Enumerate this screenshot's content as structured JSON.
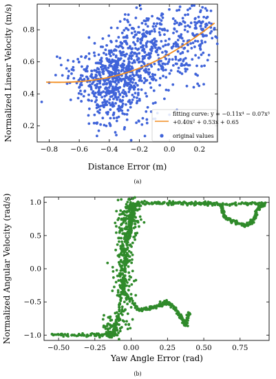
{
  "chart_data": [
    {
      "type": "scatter",
      "panel_label": "(a)",
      "title": "",
      "xlabel": "Distance Error (m)",
      "ylabel": "Normalized Linear Velocity (m/s)",
      "xlim": [
        -0.88,
        0.32
      ],
      "ylim": [
        0.1,
        0.96
      ],
      "xticks": [
        -0.8,
        -0.6,
        -0.4,
        -0.2,
        0.0,
        0.2
      ],
      "xtick_labels": [
        "−0.8",
        "−0.6",
        "−0.4",
        "−0.2",
        "0.0",
        "0.2"
      ],
      "yticks": [
        0.2,
        0.4,
        0.6,
        0.8
      ],
      "ytick_labels": [
        "0.2",
        "0.4",
        "0.6",
        "0.8"
      ],
      "grid": false,
      "legend_position": "bottom-right",
      "series": [
        {
          "name": "fitting curve",
          "kind": "line",
          "color": "#f28c1e",
          "legend_label_lines": [
            "fitting curve: y = −0.11x⁴ − 0.07x³",
            "+0.40x² + 0.53x + 0.65"
          ],
          "coefficients": [
            -0.11,
            -0.07,
            0.4,
            0.53,
            0.65
          ],
          "x_range": [
            -0.82,
            0.3
          ]
        },
        {
          "name": "original values",
          "kind": "scatter",
          "color": "#3f63d9",
          "legend_label_lines": [
            "original values"
          ],
          "clusters": [
            {
              "cx": -0.38,
              "cy": 0.52,
              "sx": 0.1,
              "sy": 0.09,
              "n": 320
            },
            {
              "cx": -0.25,
              "cy": 0.62,
              "sx": 0.1,
              "sy": 0.13,
              "n": 180
            },
            {
              "cx": -0.1,
              "cy": 0.66,
              "sx": 0.11,
              "sy": 0.13,
              "n": 170
            },
            {
              "cx": 0.08,
              "cy": 0.7,
              "sx": 0.1,
              "sy": 0.13,
              "n": 120
            },
            {
              "cx": -0.45,
              "cy": 0.36,
              "sx": 0.07,
              "sy": 0.1,
              "n": 80
            },
            {
              "cx": -0.3,
              "cy": 0.32,
              "sx": 0.09,
              "sy": 0.08,
              "n": 70
            },
            {
              "cx": 0.2,
              "cy": 0.82,
              "sx": 0.05,
              "sy": 0.06,
              "n": 50
            },
            {
              "cx": -0.62,
              "cy": 0.52,
              "sx": 0.08,
              "sy": 0.05,
              "n": 35
            }
          ],
          "points": [
            [
              -0.85,
              0.35
            ],
            [
              -0.8,
              0.47
            ],
            [
              -0.72,
              0.58
            ],
            [
              -0.6,
              0.44
            ],
            [
              -0.55,
              0.56
            ],
            [
              -0.48,
              0.22
            ],
            [
              -0.47,
              0.17
            ],
            [
              -0.42,
              0.2
            ],
            [
              -0.36,
              0.16
            ],
            [
              -0.3,
              0.18
            ],
            [
              -0.22,
              0.22
            ],
            [
              -0.15,
              0.24
            ],
            [
              0.15,
              0.95
            ],
            [
              0.22,
              0.94
            ],
            [
              0.3,
              0.81
            ],
            [
              0.28,
              0.79
            ],
            [
              0.25,
              0.83
            ],
            [
              -0.05,
              0.9
            ],
            [
              0.05,
              0.92
            ],
            [
              -0.15,
              0.87
            ],
            [
              -0.28,
              0.86
            ],
            [
              0.0,
              0.27
            ],
            [
              0.05,
              0.3
            ],
            [
              -0.08,
              0.28
            ]
          ]
        }
      ]
    },
    {
      "type": "scatter",
      "panel_label": "(b)",
      "title": "",
      "xlabel": "Yaw Angle Error (rad)",
      "ylabel": "Normalized Angular Velocity (rad/s)",
      "xlim": [
        -0.6,
        0.95
      ],
      "ylim": [
        -1.08,
        1.08
      ],
      "xticks": [
        -0.5,
        -0.25,
        0.0,
        0.25,
        0.5,
        0.75
      ],
      "xtick_labels": [
        "−0.50",
        "−0.25",
        "0.00",
        "0.25",
        "0.50",
        "0.75"
      ],
      "yticks": [
        -1.0,
        -0.5,
        0.0,
        0.5,
        1.0
      ],
      "ytick_labels": [
        "−1.0",
        "−0.5",
        "0.0",
        "0.5",
        "1.0"
      ],
      "grid": false,
      "series": [
        {
          "name": "",
          "kind": "scatter",
          "color": "#2f8a2a",
          "polylines": [
            [
              [
                -0.55,
                -1.0
              ],
              [
                -0.4,
                -1.0
              ],
              [
                -0.25,
                -1.0
              ],
              [
                -0.15,
                -1.0
              ],
              [
                -0.1,
                -0.99
              ]
            ],
            [
              [
                -0.12,
                -0.95
              ],
              [
                -0.09,
                -0.7
              ],
              [
                -0.06,
                -0.3
              ],
              [
                -0.04,
                0.1
              ],
              [
                -0.02,
                0.5
              ],
              [
                0.0,
                0.8
              ],
              [
                0.02,
                0.95
              ],
              [
                0.05,
                1.0
              ]
            ],
            [
              [
                0.05,
                1.0
              ],
              [
                0.3,
                0.99
              ],
              [
                0.5,
                0.98
              ],
              [
                0.62,
                0.97
              ],
              [
                0.8,
                0.98
              ],
              [
                0.92,
                0.99
              ]
            ],
            [
              [
                0.06,
                0.98
              ],
              [
                0.3,
                0.99
              ],
              [
                0.55,
                0.99
              ]
            ],
            [
              [
                0.62,
                0.97
              ],
              [
                0.64,
                0.78
              ],
              [
                0.7,
                0.72
              ],
              [
                0.78,
                0.65
              ],
              [
                0.84,
                0.72
              ],
              [
                0.88,
                0.92
              ],
              [
                0.92,
                0.98
              ]
            ],
            [
              [
                -0.05,
                -0.35
              ],
              [
                0.05,
                -0.62
              ],
              [
                0.12,
                -0.6
              ],
              [
                0.2,
                -0.55
              ],
              [
                0.25,
                -0.5
              ],
              [
                0.3,
                -0.6
              ],
              [
                0.34,
                -0.72
              ],
              [
                0.37,
                -0.85
              ],
              [
                0.4,
                -0.65
              ]
            ]
          ],
          "clusters": [
            {
              "cx": -0.05,
              "cy": 0.0,
              "sx": 0.03,
              "sy": 0.55,
              "n": 260
            },
            {
              "cx": 0.0,
              "cy": 0.78,
              "sx": 0.03,
              "sy": 0.2,
              "n": 140
            },
            {
              "cx": -0.14,
              "cy": -0.88,
              "sx": 0.03,
              "sy": 0.1,
              "n": 60
            }
          ]
        }
      ]
    }
  ]
}
